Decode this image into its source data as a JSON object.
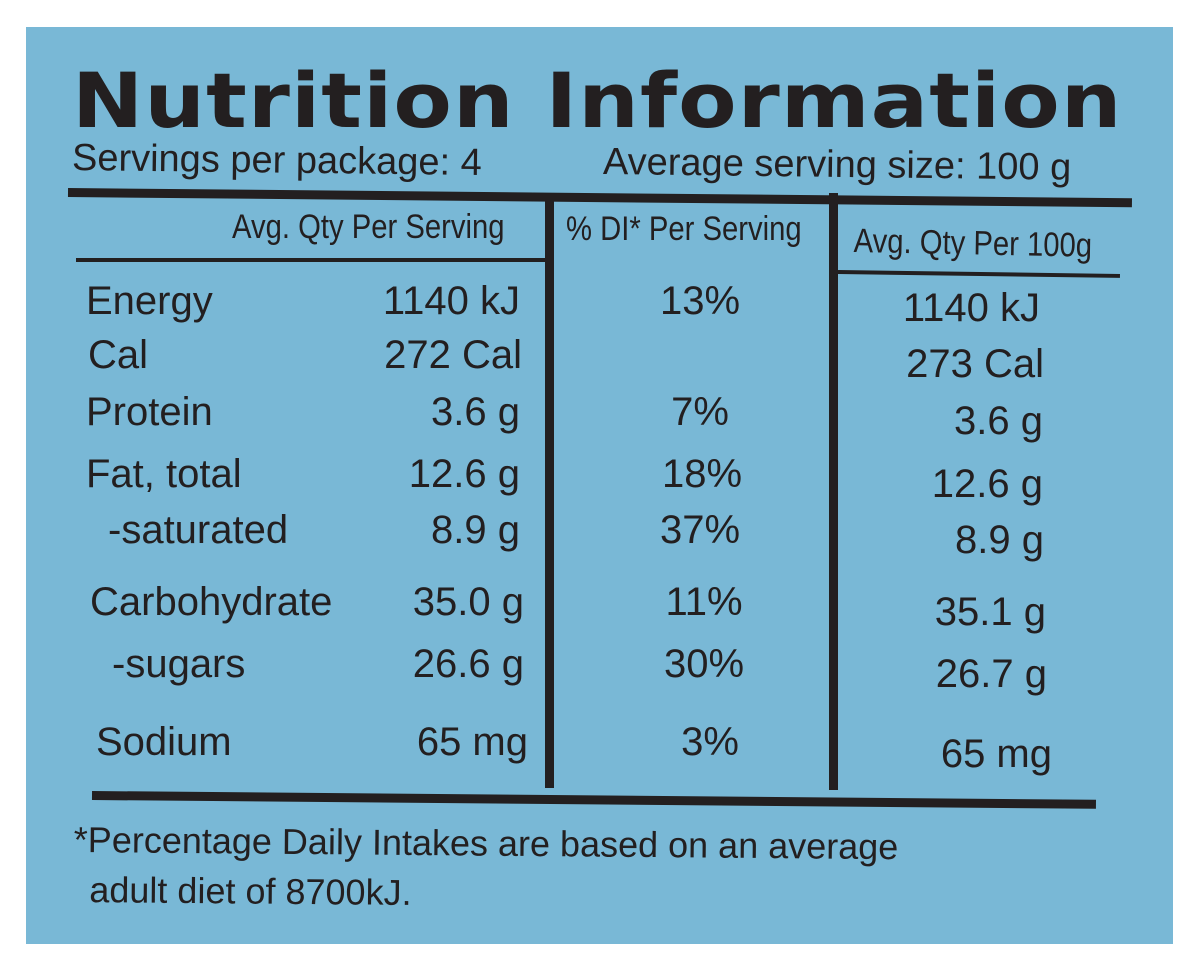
{
  "label": {
    "title": "Nutrition Information",
    "servings_per_package": "Servings per package: 4",
    "average_serving_size": "Average serving size: 100 g",
    "columns": [
      "Avg. Qty Per Serving",
      "% DI* Per Serving",
      "Avg. Qty Per 100g"
    ],
    "rows": [
      {
        "name": "Energy",
        "per_serving": "1140 kJ",
        "di": "13%",
        "per_100g": "1140 kJ"
      },
      {
        "name": "Cal",
        "per_serving": "272 Cal",
        "di": "",
        "per_100g": "273 Cal"
      },
      {
        "name": "Protein",
        "per_serving": "3.6 g",
        "di": "7%",
        "per_100g": "3.6 g"
      },
      {
        "name": "Fat, total",
        "per_serving": "12.6 g",
        "di": "18%",
        "per_100g": "12.6 g"
      },
      {
        "name": "-saturated",
        "per_serving": "8.9 g",
        "di": "37%",
        "per_100g": "8.9 g"
      },
      {
        "name": "Carbohydrate",
        "per_serving": "35.0 g",
        "di": "11%",
        "per_100g": "35.1 g"
      },
      {
        "name": "-sugars",
        "per_serving": "26.6 g",
        "di": "30%",
        "per_100g": "26.7 g"
      },
      {
        "name": "Sodium",
        "per_serving": "65 mg",
        "di": "3%",
        "per_100g": "65 mg"
      }
    ],
    "footnote_line1": "*Percentage Daily Intakes are based on an average",
    "footnote_line2": "adult diet of 8700kJ."
  },
  "colors": {
    "panel": "#79b8d6",
    "ink": "#231f20",
    "page": "#ffffff"
  }
}
